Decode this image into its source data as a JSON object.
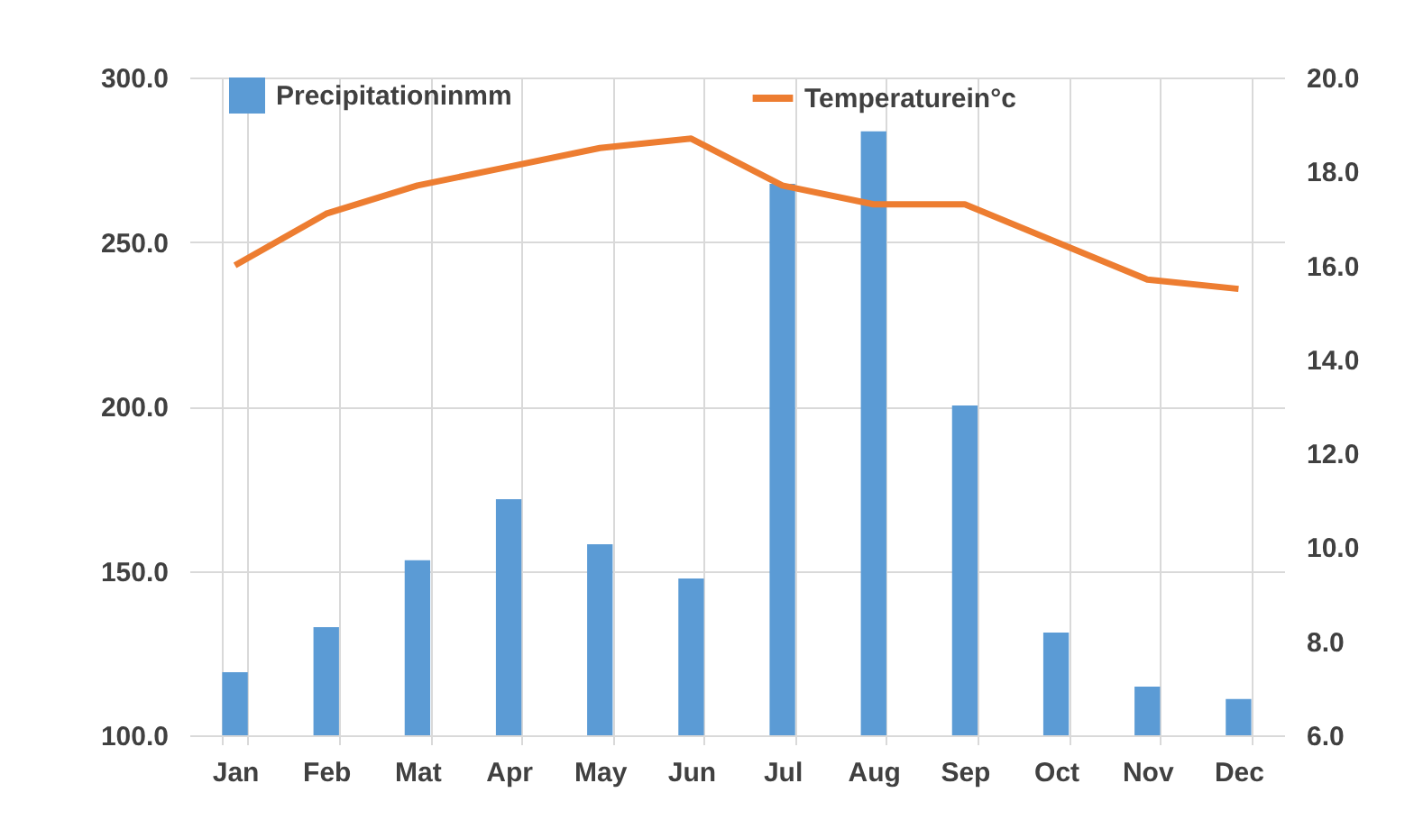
{
  "chart_data": {
    "type": "bar",
    "categories": [
      "Jan",
      "Feb",
      "Mat",
      "Apr",
      "May",
      "Jun",
      "Jul",
      "Aug",
      "Sep",
      "Oct",
      "Nov",
      "Dec"
    ],
    "series": [
      {
        "name": "Precipitationinmm",
        "color": "#5b9bd5",
        "values": [
          119.2,
          132.9,
          153.2,
          171.8,
          158.1,
          147.7,
          267.7,
          283.6,
          200.3,
          131.2,
          114.8,
          111.0
        ]
      },
      {
        "name": "Temperaturein°c",
        "type": "line",
        "axis": "y2",
        "color": "#ed7d31",
        "values": [
          16.0,
          17.1,
          17.7,
          18.1,
          18.5,
          18.7,
          17.7,
          17.3,
          17.3,
          16.5,
          15.7,
          15.5
        ]
      }
    ],
    "ylim": [
      100,
      300
    ],
    "yticks": [
      {
        "value": 100,
        "label": "100.0"
      },
      {
        "value": 150,
        "label": "150.0"
      },
      {
        "value": 200,
        "label": "200.0"
      },
      {
        "value": 250,
        "label": "250.0"
      },
      {
        "value": 300,
        "label": "300.0"
      }
    ],
    "y2lim": [
      6,
      20
    ],
    "y2ticks": [
      {
        "value": 6,
        "label": "6.0"
      },
      {
        "value": 8,
        "label": "8.0"
      },
      {
        "value": 10,
        "label": "10.0"
      },
      {
        "value": 12,
        "label": "12.0"
      },
      {
        "value": 14,
        "label": "14.0"
      },
      {
        "value": 16,
        "label": "16.0"
      },
      {
        "value": 18,
        "label": "18.0"
      },
      {
        "value": 20,
        "label": "20.0"
      }
    ],
    "grid": true,
    "legend": "top",
    "marker": "none",
    "line_style": "solid"
  }
}
